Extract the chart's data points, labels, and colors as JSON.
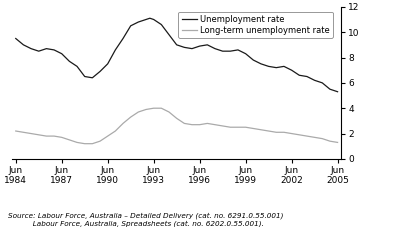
{
  "title": "",
  "ylabel": "%",
  "ylim": [
    0,
    12
  ],
  "yticks": [
    0,
    2,
    4,
    6,
    8,
    10,
    12
  ],
  "xlim": [
    1984.25,
    2005.75
  ],
  "xtick_years": [
    1984,
    1987,
    1990,
    1993,
    1996,
    1999,
    2002,
    2005
  ],
  "source_line1": "Source: Labour Force, Australia – Detailed Delivery (cat. no. 6291.0.55.001)",
  "source_line2": "           Labour Force, Australia, Spreadsheets (cat. no. 6202.0.55.001).",
  "legend_entries": [
    "Unemployment rate",
    "Long-term unemployment rate"
  ],
  "line_colors": [
    "#1a1a1a",
    "#aaaaaa"
  ],
  "unemp_x": [
    1984.5,
    1985.0,
    1985.5,
    1986.0,
    1986.5,
    1987.0,
    1987.5,
    1988.0,
    1988.5,
    1989.0,
    1989.5,
    1990.0,
    1990.5,
    1991.0,
    1991.5,
    1992.0,
    1992.5,
    1993.0,
    1993.25,
    1993.5,
    1994.0,
    1994.5,
    1995.0,
    1995.5,
    1996.0,
    1996.5,
    1997.0,
    1997.5,
    1998.0,
    1998.5,
    1999.0,
    1999.5,
    2000.0,
    2000.5,
    2001.0,
    2001.5,
    2002.0,
    2002.5,
    2003.0,
    2003.5,
    2004.0,
    2004.5,
    2005.0,
    2005.5
  ],
  "unemp_y": [
    9.5,
    9.0,
    8.7,
    8.5,
    8.7,
    8.6,
    8.3,
    7.7,
    7.3,
    6.5,
    6.4,
    6.9,
    7.5,
    8.6,
    9.5,
    10.5,
    10.8,
    11.0,
    11.1,
    11.0,
    10.6,
    9.8,
    9.0,
    8.8,
    8.7,
    8.9,
    9.0,
    8.7,
    8.5,
    8.5,
    8.6,
    8.3,
    7.8,
    7.5,
    7.3,
    7.2,
    7.3,
    7.0,
    6.6,
    6.5,
    6.2,
    6.0,
    5.5,
    5.3
  ],
  "lt_x": [
    1984.5,
    1985.0,
    1985.5,
    1986.0,
    1986.5,
    1987.0,
    1987.5,
    1988.0,
    1988.5,
    1989.0,
    1989.5,
    1990.0,
    1990.5,
    1991.0,
    1991.5,
    1992.0,
    1992.5,
    1993.0,
    1993.5,
    1994.0,
    1994.5,
    1995.0,
    1995.5,
    1996.0,
    1996.5,
    1997.0,
    1997.5,
    1998.0,
    1998.5,
    1999.0,
    1999.5,
    2000.0,
    2000.5,
    2001.0,
    2001.5,
    2002.0,
    2002.5,
    2003.0,
    2003.5,
    2004.0,
    2004.5,
    2005.0,
    2005.5
  ],
  "lt_y": [
    2.2,
    2.1,
    2.0,
    1.9,
    1.8,
    1.8,
    1.7,
    1.5,
    1.3,
    1.2,
    1.2,
    1.4,
    1.8,
    2.2,
    2.8,
    3.3,
    3.7,
    3.9,
    4.0,
    4.0,
    3.7,
    3.2,
    2.8,
    2.7,
    2.7,
    2.8,
    2.7,
    2.6,
    2.5,
    2.5,
    2.5,
    2.4,
    2.3,
    2.2,
    2.1,
    2.1,
    2.0,
    1.9,
    1.8,
    1.7,
    1.6,
    1.4,
    1.3
  ]
}
